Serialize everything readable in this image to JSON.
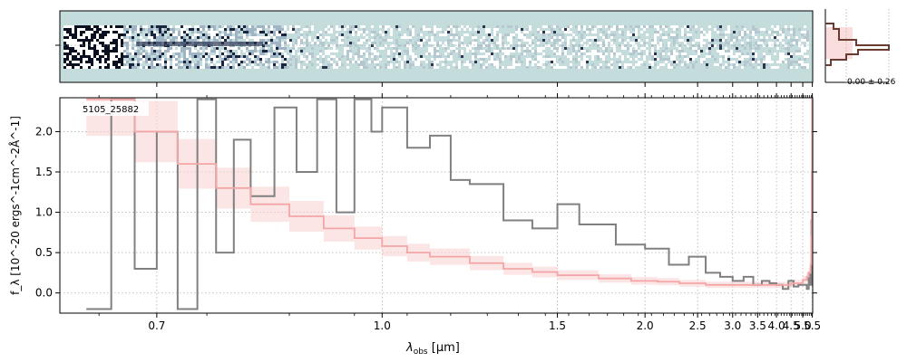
{
  "figure": {
    "label": "5105_25882",
    "sigma_label": "0.00 ± 0.26",
    "xlabel_main": "λ",
    "xlabel_sub": "obs",
    "xlabel_unit": " [μm]",
    "ylabel": "f_λ [10^-20 ergs^-1cm^-2Å^-1]"
  },
  "colors": {
    "data": "#808080",
    "model": "#f4a6a6",
    "model_shade": "#f8d0d0",
    "twod_bg": "#c5dcdc",
    "profile": "#6b3a30",
    "grid": "#b0b0b0"
  },
  "chart_data": [
    {
      "type": "line",
      "panel": "1D spectrum",
      "x_scale": "wavelength-reciprocal",
      "xlim": [
        0.62,
        5.52
      ],
      "ylim": [
        -0.25,
        2.42
      ],
      "x_ticks": [
        0.7,
        1.0,
        1.5,
        2.0,
        2.5,
        3.0,
        3.5,
        4.0,
        4.5,
        5.0,
        5.5
      ],
      "x_tick_labels": [
        "0.7",
        "1.0",
        "1.5",
        "2.0",
        "2.5",
        "3.0",
        "3.5",
        "4.0",
        "4.5",
        "5.0",
        "5.5"
      ],
      "y_ticks": [
        0.0,
        0.5,
        1.0,
        1.5,
        2.0
      ],
      "y_tick_labels": [
        "0.0",
        "0.5",
        "1.0",
        "1.5",
        "2.0"
      ],
      "grid": true,
      "series": [
        {
          "style": "step",
          "x": [
            0.64,
            0.66,
            0.68,
            0.7,
            0.72,
            0.74,
            0.76,
            0.78,
            0.8,
            0.83,
            0.86,
            0.89,
            0.92,
            0.95,
            0.98,
            1.0,
            1.05,
            1.1,
            1.15,
            1.2,
            1.3,
            1.4,
            1.5,
            1.6,
            1.8,
            2.0,
            2.2,
            2.4,
            2.6,
            2.8,
            3.0,
            3.2,
            3.4,
            3.6,
            3.8,
            4.0,
            4.2,
            4.4,
            4.6,
            4.8,
            5.0,
            5.2,
            5.3,
            5.4,
            5.45,
            5.48,
            5.5
          ],
          "y": [
            -0.2,
            2.4,
            0.3,
            2.0,
            -0.2,
            2.4,
            0.5,
            1.9,
            1.2,
            2.3,
            1.5,
            2.4,
            1.0,
            2.4,
            2.0,
            2.3,
            1.8,
            1.95,
            1.4,
            1.35,
            0.9,
            0.8,
            1.1,
            0.85,
            0.6,
            0.55,
            0.35,
            0.45,
            0.25,
            0.2,
            0.15,
            0.2,
            0.1,
            0.15,
            0.12,
            0.1,
            0.05,
            0.15,
            0.08,
            0.1,
            0.1,
            0.05,
            0.25,
            0.1,
            0.9,
            1.5,
            2.4
          ]
        },
        {
          "style": "step",
          "x": [
            0.64,
            0.68,
            0.72,
            0.76,
            0.8,
            0.85,
            0.9,
            0.95,
            1.0,
            1.05,
            1.1,
            1.2,
            1.3,
            1.4,
            1.5,
            1.7,
            1.9,
            2.1,
            2.3,
            2.6,
            3.0,
            3.5,
            4.0,
            4.5,
            5.0,
            5.2,
            5.3,
            5.4,
            5.45,
            5.48,
            5.5
          ],
          "y": [
            2.4,
            2.0,
            1.6,
            1.3,
            1.1,
            0.95,
            0.8,
            0.68,
            0.58,
            0.5,
            0.45,
            0.37,
            0.3,
            0.26,
            0.22,
            0.18,
            0.15,
            0.14,
            0.12,
            0.1,
            0.1,
            0.1,
            0.1,
            0.12,
            0.16,
            0.2,
            0.25,
            0.35,
            0.7,
            1.5,
            2.4
          ]
        }
      ]
    }
  ]
}
